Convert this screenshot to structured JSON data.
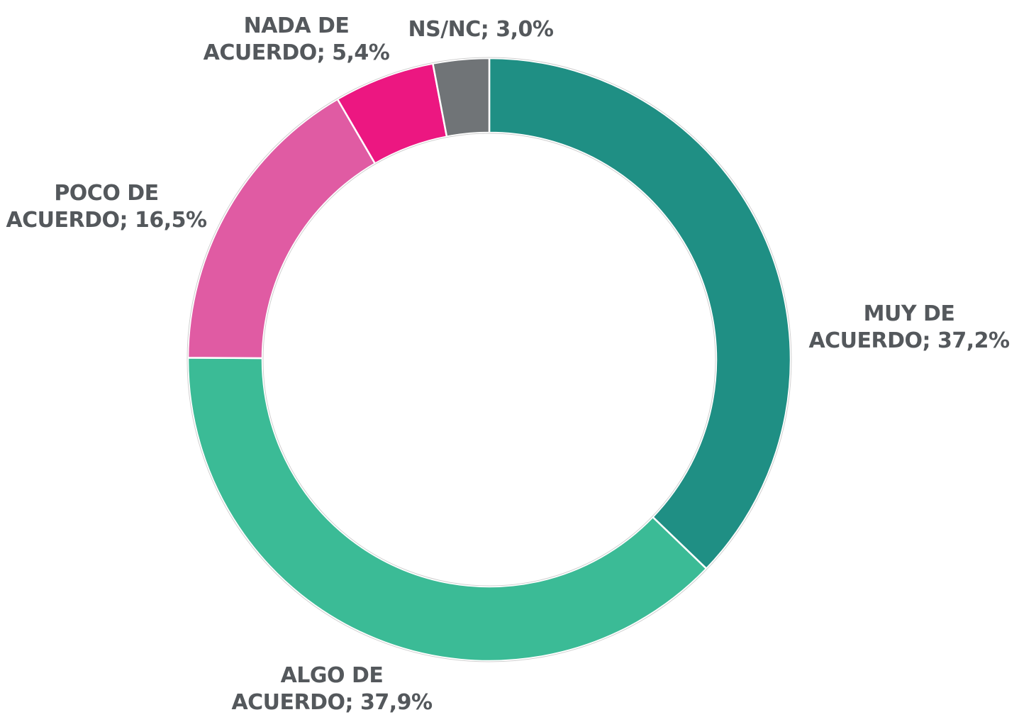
{
  "chart_data": {
    "type": "pie",
    "categories": [
      "MUY DE ACUERDO; 37,2%",
      "ALGO DE ACUERDO; 37,9%",
      "POCO DE ACUERDO; 16,5%",
      "NADA DE ACUERDO; 5,4%",
      "NS/NC; 3,0%"
    ],
    "values": [
      37.2,
      37.9,
      16.5,
      5.4,
      3.0
    ],
    "colors": [
      "#1f8f84",
      "#3bbb96",
      "#e05ba3",
      "#ec1781",
      "#707477"
    ]
  }
}
